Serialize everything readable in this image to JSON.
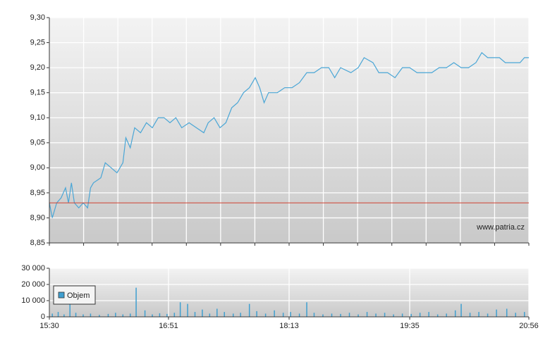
{
  "chart_data": [
    {
      "type": "line",
      "x": [
        "15:30",
        "15:32",
        "15:35",
        "15:38",
        "15:41",
        "15:43",
        "15:45",
        "15:47",
        "15:50",
        "15:53",
        "15:56",
        "15:58",
        "16:00",
        "16:05",
        "16:08",
        "16:12",
        "16:16",
        "16:20",
        "16:22",
        "16:25",
        "16:28",
        "16:32",
        "16:36",
        "16:40",
        "16:44",
        "16:48",
        "16:52",
        "16:56",
        "17:00",
        "17:05",
        "17:10",
        "17:15",
        "17:18",
        "17:22",
        "17:26",
        "17:30",
        "17:34",
        "17:38",
        "17:42",
        "17:46",
        "17:50",
        "17:53",
        "17:56",
        "17:59",
        "18:05",
        "18:10",
        "18:15",
        "18:20",
        "18:25",
        "18:30",
        "18:35",
        "18:40",
        "18:44",
        "18:48",
        "18:55",
        "19:00",
        "19:04",
        "19:10",
        "19:14",
        "19:20",
        "19:25",
        "19:30",
        "19:35",
        "19:40",
        "19:45",
        "19:50",
        "19:55",
        "20:00",
        "20:05",
        "20:10",
        "20:15",
        "20:20",
        "20:24",
        "20:28",
        "20:32",
        "20:36",
        "20:40",
        "20:45",
        "20:50",
        "20:53",
        "20:56"
      ],
      "series": [
        {
          "color": "#4aa6d6",
          "values": [
            8.93,
            8.9,
            8.93,
            8.94,
            8.96,
            8.93,
            8.97,
            8.93,
            8.92,
            8.93,
            8.92,
            8.96,
            8.97,
            8.98,
            9.01,
            9.0,
            8.99,
            9.01,
            9.06,
            9.04,
            9.08,
            9.07,
            9.09,
            9.08,
            9.1,
            9.1,
            9.09,
            9.1,
            9.08,
            9.09,
            9.08,
            9.07,
            9.09,
            9.1,
            9.08,
            9.09,
            9.12,
            9.13,
            9.15,
            9.16,
            9.18,
            9.16,
            9.13,
            9.15,
            9.15,
            9.16,
            9.16,
            9.17,
            9.19,
            9.19,
            9.2,
            9.2,
            9.18,
            9.2,
            9.19,
            9.2,
            9.22,
            9.21,
            9.19,
            9.19,
            9.18,
            9.2,
            9.2,
            9.19,
            9.19,
            9.19,
            9.2,
            9.2,
            9.21,
            9.2,
            9.2,
            9.21,
            9.23,
            9.22,
            9.22,
            9.22,
            9.21,
            9.21,
            9.21,
            9.22,
            9.22
          ]
        }
      ],
      "xlim": [
        "15:30",
        "20:56"
      ],
      "ylim": [
        8.85,
        9.3
      ],
      "yticks": [
        {
          "value": 8.85,
          "label": "8,85"
        },
        {
          "value": 8.9,
          "label": "8,90"
        },
        {
          "value": 8.95,
          "label": "8,95"
        },
        {
          "value": 9.0,
          "label": "9,00"
        },
        {
          "value": 9.05,
          "label": "9,05"
        },
        {
          "value": 9.1,
          "label": "9,10"
        },
        {
          "value": 9.15,
          "label": "9,15"
        },
        {
          "value": 9.2,
          "label": "9,20"
        },
        {
          "value": 9.25,
          "label": "9,25"
        },
        {
          "value": 9.3,
          "label": "9,30"
        }
      ],
      "reference_line": {
        "value": 8.93,
        "color": "#d04030"
      },
      "watermark": "www.patria.cz",
      "grid": true
    },
    {
      "type": "bar",
      "x": [
        "15:32",
        "15:36",
        "15:40",
        "15:44",
        "15:48",
        "15:53",
        "15:58",
        "16:04",
        "16:10",
        "16:15",
        "16:20",
        "16:25",
        "16:29",
        "16:35",
        "16:40",
        "16:45",
        "16:50",
        "16:55",
        "16:59",
        "17:04",
        "17:09",
        "17:14",
        "17:19",
        "17:24",
        "17:29",
        "17:35",
        "17:40",
        "17:46",
        "17:51",
        "17:57",
        "18:03",
        "18:09",
        "18:14",
        "18:20",
        "18:25",
        "18:30",
        "18:36",
        "18:42",
        "18:48",
        "18:54",
        "19:00",
        "19:06",
        "19:12",
        "19:18",
        "19:24",
        "19:30",
        "19:36",
        "19:42",
        "19:48",
        "19:54",
        "20:00",
        "20:06",
        "20:10",
        "20:16",
        "20:22",
        "20:28",
        "20:34",
        "20:41",
        "20:47",
        "20:53"
      ],
      "series": [
        {
          "name": "Objem",
          "color": "#3f9fd0",
          "values": [
            2000,
            3000,
            1500,
            10000,
            2500,
            1500,
            2000,
            1200,
            1800,
            2500,
            1500,
            2000,
            18000,
            4000,
            1500,
            2200,
            1800,
            2500,
            9000,
            8000,
            3000,
            4500,
            2000,
            5000,
            3000,
            2000,
            2500,
            8000,
            3500,
            2000,
            4000,
            2500,
            3000,
            2000,
            9000,
            2500,
            1500,
            2000,
            1800,
            2500,
            1500,
            3000,
            2000,
            2500,
            1500,
            2000,
            1800,
            2500,
            3000,
            1500,
            2000,
            4000,
            8000,
            2500,
            3000,
            2000,
            4500,
            5000,
            2500,
            3000
          ]
        }
      ],
      "xlim": [
        "15:30",
        "20:56"
      ],
      "xticks": [
        "15:30",
        "16:51",
        "18:13",
        "19:35",
        "20:56"
      ],
      "ylim": [
        0,
        30000
      ],
      "yticks": [
        0,
        {
          "value": 10000,
          "label": "10 000"
        },
        {
          "value": 20000,
          "label": "20 000"
        },
        {
          "value": 30000,
          "label": "30 000"
        }
      ],
      "grid": true
    }
  ]
}
